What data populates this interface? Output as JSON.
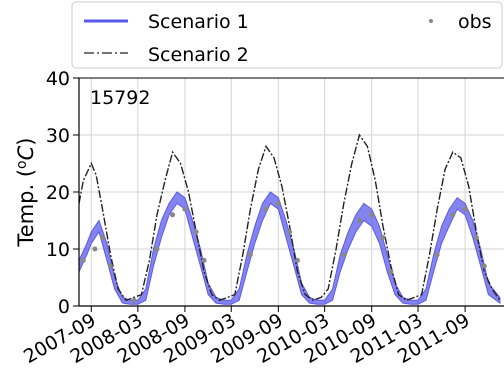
{
  "chart_data": {
    "type": "line",
    "title": "",
    "annotation": "15792",
    "xlabel": "",
    "ylabel": "Temp. (°C)",
    "ylabel_parts": {
      "prefix": "Temp. (",
      "degree": "o",
      "unit": "C",
      "suffix": ")"
    },
    "ylim": [
      0,
      40
    ],
    "yticks": [
      0,
      10,
      20,
      30,
      40
    ],
    "x_range": [
      "2007-07-15",
      "2012-01-31"
    ],
    "xticks": [
      "2007-09",
      "2008-03",
      "2008-09",
      "2009-03",
      "2009-09",
      "2010-03",
      "2010-09",
      "2011-03",
      "2011-09"
    ],
    "grid": true,
    "legend": {
      "placement": "top",
      "entries": [
        {
          "name": "Scenario 1",
          "style": "solid",
          "color": "#5b5be8"
        },
        {
          "name": "Scenario 2",
          "style": "dashdot",
          "color": "#222222"
        },
        {
          "name": "obs",
          "style": "marker",
          "color": "#888888"
        }
      ]
    },
    "series": [
      {
        "name": "Scenario 1",
        "kind": "band",
        "color": "#5b5be8",
        "x": [
          "2007-07-15",
          "2007-08-15",
          "2007-09-01",
          "2007-10-01",
          "2007-11-01",
          "2007-12-01",
          "2008-01-01",
          "2008-02-01",
          "2008-03-01",
          "2008-04-01",
          "2008-05-01",
          "2008-06-01",
          "2008-07-01",
          "2008-08-01",
          "2008-09-01",
          "2008-10-01",
          "2008-11-01",
          "2008-12-01",
          "2009-01-01",
          "2009-02-01",
          "2009-03-01",
          "2009-04-01",
          "2009-05-01",
          "2009-06-01",
          "2009-07-01",
          "2009-08-01",
          "2009-09-01",
          "2009-10-01",
          "2009-11-01",
          "2009-12-01",
          "2010-01-01",
          "2010-02-01",
          "2010-03-01",
          "2010-04-01",
          "2010-05-01",
          "2010-06-01",
          "2010-07-01",
          "2010-08-01",
          "2010-09-01",
          "2010-10-01",
          "2010-11-01",
          "2010-12-01",
          "2011-01-01",
          "2011-02-01",
          "2011-03-01",
          "2011-04-01",
          "2011-05-01",
          "2011-06-01",
          "2011-07-01",
          "2011-08-01",
          "2011-09-01",
          "2011-10-01",
          "2011-11-01",
          "2011-12-01",
          "2012-01-15"
        ],
        "lower": [
          6,
          9,
          11,
          13,
          8,
          3,
          0.5,
          0.3,
          0.3,
          1,
          7,
          12,
          16,
          18,
          17,
          12,
          7,
          2,
          0.5,
          0.3,
          0.3,
          1,
          6,
          11,
          15,
          18,
          17,
          12,
          7,
          2,
          0.5,
          0.3,
          0.3,
          1,
          6,
          10,
          13,
          15,
          14,
          11,
          6,
          2,
          0.5,
          0.3,
          0.3,
          1,
          6,
          11,
          14,
          17,
          16,
          12,
          7,
          2,
          0.5
        ],
        "upper": [
          8,
          11,
          13,
          15,
          11,
          5,
          1.5,
          1,
          1,
          3,
          10,
          15,
          18,
          20,
          19,
          15,
          10,
          4,
          1.5,
          1,
          1,
          3,
          9,
          14,
          18,
          20,
          19,
          15,
          10,
          4,
          1.5,
          1,
          1,
          3,
          9,
          13,
          16,
          18,
          17,
          14,
          9,
          4,
          1.5,
          1,
          1,
          3,
          9,
          14,
          17,
          19,
          18,
          15,
          10,
          4,
          1.5
        ]
      },
      {
        "name": "Scenario 2",
        "kind": "line",
        "color": "#222222",
        "x": [
          "2007-07-15",
          "2007-08-01",
          "2007-09-01",
          "2007-09-20",
          "2007-10-15",
          "2007-11-15",
          "2007-12-15",
          "2008-01-15",
          "2008-02-15",
          "2008-03-15",
          "2008-04-15",
          "2008-05-15",
          "2008-06-15",
          "2008-07-15",
          "2008-08-15",
          "2008-09-15",
          "2008-10-15",
          "2008-11-15",
          "2008-12-15",
          "2009-01-15",
          "2009-02-15",
          "2009-03-15",
          "2009-04-15",
          "2009-05-15",
          "2009-06-15",
          "2009-07-15",
          "2009-08-15",
          "2009-09-15",
          "2009-10-15",
          "2009-11-15",
          "2009-12-15",
          "2010-01-15",
          "2010-02-15",
          "2010-03-15",
          "2010-04-15",
          "2010-05-15",
          "2010-06-15",
          "2010-07-15",
          "2010-08-15",
          "2010-09-15",
          "2010-10-15",
          "2010-11-15",
          "2010-12-15",
          "2011-01-15",
          "2011-02-15",
          "2011-03-15",
          "2011-04-15",
          "2011-05-15",
          "2011-06-15",
          "2011-07-15",
          "2011-08-15",
          "2011-09-15",
          "2011-10-15",
          "2011-11-15",
          "2011-12-15",
          "2012-01-15"
        ],
        "y": [
          18,
          22,
          25,
          23,
          17,
          9,
          3,
          1,
          1.5,
          2,
          8,
          16,
          22,
          27,
          25,
          20,
          13,
          6,
          2,
          1,
          1.5,
          2,
          9,
          17,
          24,
          28,
          26,
          21,
          14,
          6,
          2,
          1,
          1.5,
          3,
          10,
          18,
          25,
          30,
          28,
          22,
          14,
          7,
          2,
          1,
          1.5,
          2,
          9,
          17,
          24,
          27,
          26,
          21,
          13,
          6,
          3,
          1
        ]
      },
      {
        "name": "obs",
        "kind": "scatter",
        "color": "#888888",
        "x": [
          "2007-08-01",
          "2007-09-15",
          "2007-10-15",
          "2007-11-15",
          "2008-02-15",
          "2008-05-15",
          "2008-07-15",
          "2008-09-01",
          "2008-10-15",
          "2008-11-15",
          "2009-05-15",
          "2009-07-15",
          "2009-09-01",
          "2009-10-15",
          "2009-11-15",
          "2010-05-15",
          "2010-07-15",
          "2010-09-01",
          "2010-10-15",
          "2010-11-15",
          "2011-05-15",
          "2011-07-15",
          "2011-09-01",
          "2011-10-15",
          "2011-11-15"
        ],
        "y": [
          8,
          10,
          12,
          7,
          1,
          10,
          16,
          17,
          13,
          8,
          9,
          17,
          18,
          13,
          8,
          9,
          15,
          16,
          12,
          6,
          9,
          16,
          17,
          12,
          7
        ]
      }
    ]
  }
}
